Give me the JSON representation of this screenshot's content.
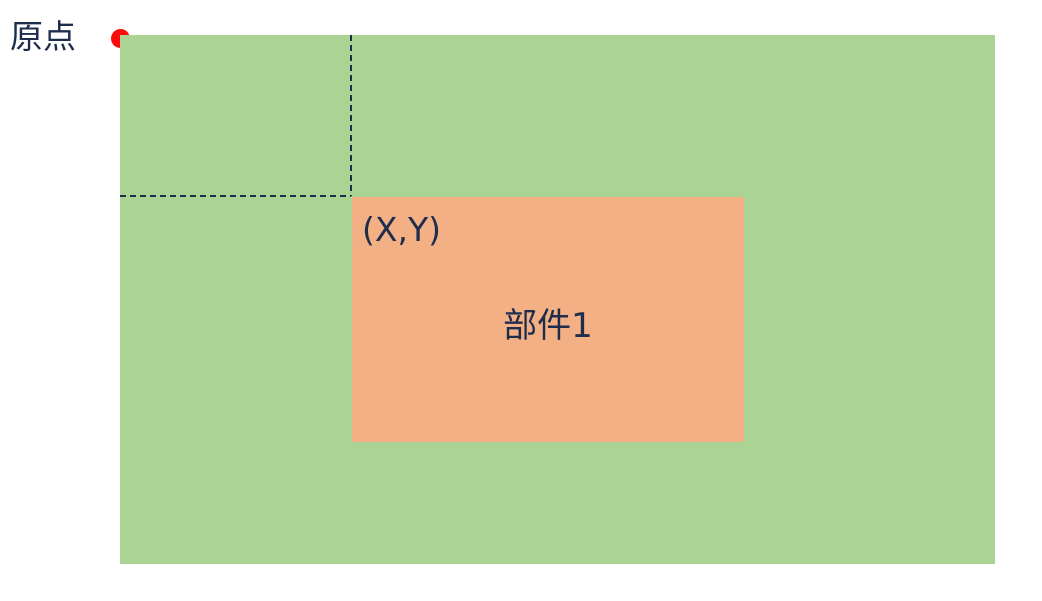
{
  "origin": {
    "label": "原点",
    "marker_color": "#ff0a0a"
  },
  "container": {
    "color": "#abd393"
  },
  "widget": {
    "coordinate_label": "(X,Y)",
    "label": "部件1",
    "color": "#f2b084"
  },
  "guides": {
    "style": "dashed",
    "color": "#1f2d4d"
  },
  "text_color": "#1f2d4d"
}
